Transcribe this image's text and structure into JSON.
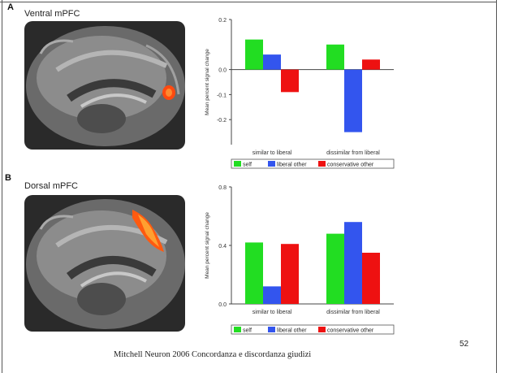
{
  "panel_a": {
    "letter": "A",
    "title": "Ventral mPFC"
  },
  "panel_b": {
    "letter": "B",
    "title": "Dorsal mPFC"
  },
  "caption": "Mitchell Neuron 2006 Concordanza e discordanza giudizi",
  "page_number": "52",
  "colors": {
    "self": "#22dd22",
    "liberal": "#3355ee",
    "conservative": "#ee1111"
  },
  "chart_data": [
    {
      "type": "bar",
      "categories": [
        "similar to liberal",
        "dissimilar from liberal"
      ],
      "series": [
        {
          "name": "self",
          "values": [
            0.12,
            0.1
          ]
        },
        {
          "name": "liberal other",
          "values": [
            0.06,
            -0.25
          ]
        },
        {
          "name": "conservative other",
          "values": [
            -0.09,
            0.04
          ]
        }
      ],
      "ylabel": "Mean percent signal change",
      "ylim": [
        -0.3,
        0.2
      ],
      "yticks": [
        "0.2",
        "0.0",
        "-0.1",
        "-0.2"
      ]
    },
    {
      "type": "bar",
      "categories": [
        "similar to liberal",
        "dissimilar from liberal"
      ],
      "series": [
        {
          "name": "self",
          "values": [
            0.42,
            0.48
          ]
        },
        {
          "name": "liberal other",
          "values": [
            0.12,
            0.56
          ]
        },
        {
          "name": "conservative other",
          "values": [
            0.41,
            0.35
          ]
        }
      ],
      "ylabel": "Mean percent signal change",
      "ylim": [
        0,
        0.8
      ],
      "yticks": [
        "0.8",
        "0.4",
        "0.0"
      ]
    }
  ]
}
